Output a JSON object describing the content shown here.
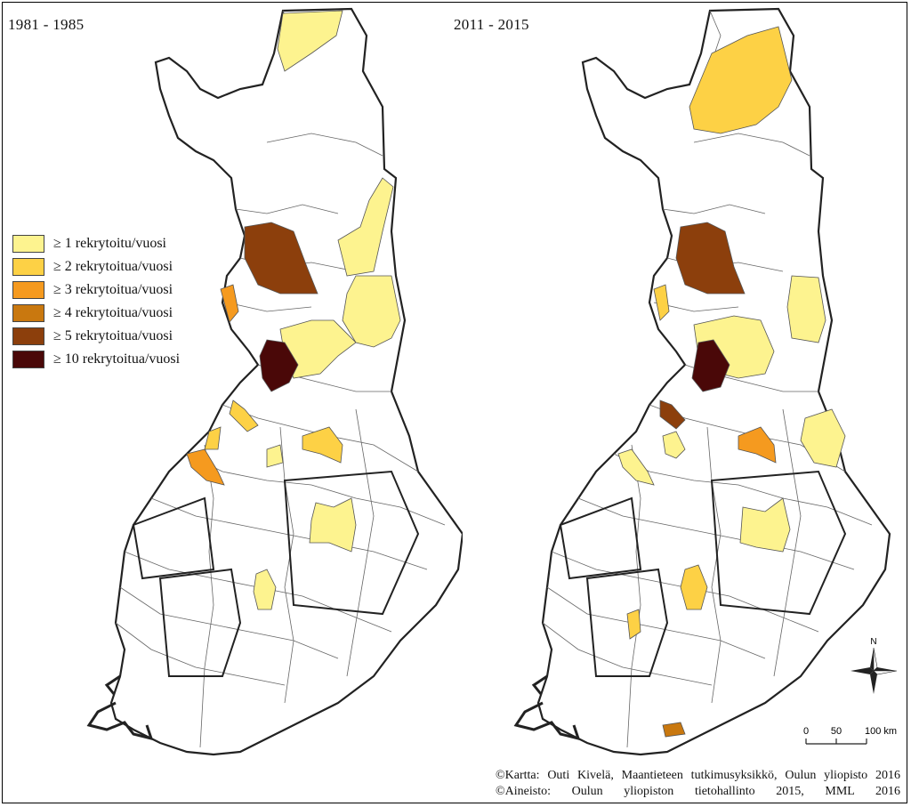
{
  "maps": [
    {
      "period": "1981 - 1985"
    },
    {
      "period": "2011 - 2015"
    }
  ],
  "legend": {
    "items": [
      {
        "label": "≥ 1 rekrytoitu/vuosi",
        "color": "#fdf38f"
      },
      {
        "label": "≥ 2 rekrytoitua/vuosi",
        "color": "#fdd145"
      },
      {
        "label": "≥ 3 rekrytoitua/vuosi",
        "color": "#f59a1f"
      },
      {
        "label": "≥ 4 rekrytoitua/vuosi",
        "color": "#c9780f"
      },
      {
        "label": "≥ 5 rekrytoitua/vuosi",
        "color": "#8c3f0c"
      },
      {
        "label": "≥ 10 rekrytoitua/vuosi",
        "color": "#4a0808"
      }
    ]
  },
  "north_arrow": {
    "label": "N"
  },
  "scale_bar": {
    "ticks": [
      "0",
      "50",
      "100 km"
    ]
  },
  "credits": {
    "line1": "©Kartta: Outi Kivelä, Maantieteen tutkimusyksikkö, Oulun yliopisto 2016",
    "line2": "©Aineisto: Oulun yliopiston tietohallinto 2015, MML 2016"
  }
}
